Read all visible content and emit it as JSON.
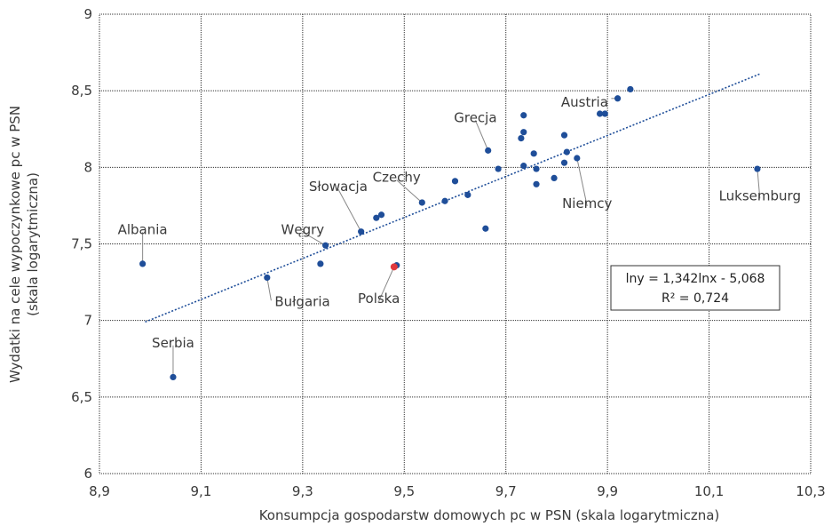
{
  "chart_data": {
    "type": "scatter",
    "title": "",
    "xlabel": "Konsumpcja gospodarstw domowych pc w PSN (skala logarytmiczna)",
    "ylabel_line1": "Wydatki na cele wypoczynkowe pc w PSN",
    "ylabel_line2": "(skala logarytmiczna)",
    "xlim": [
      8.9,
      10.3
    ],
    "ylim": [
      6,
      9
    ],
    "x_ticks": [
      8.9,
      9.1,
      9.3,
      9.5,
      9.7,
      9.9,
      10.1,
      10.3
    ],
    "x_tick_labels": [
      "8,9",
      "9,1",
      "9,3",
      "9,5",
      "9,7",
      "9,9",
      "10,1",
      "10,3"
    ],
    "y_ticks": [
      6,
      6.5,
      7,
      7.5,
      8,
      8.5,
      9
    ],
    "y_tick_labels": [
      "6",
      "6,5",
      "7",
      "7,5",
      "8",
      "8,5",
      "9"
    ],
    "grid": true,
    "colors": {
      "point": "#1f4e99",
      "highlight": "#e0393e",
      "trend": "#1f4e99",
      "grid": "#333333",
      "text": "#3a3a3a"
    },
    "points": [
      {
        "x": 8.985,
        "y": 7.37
      },
      {
        "x": 9.045,
        "y": 6.63
      },
      {
        "x": 9.23,
        "y": 7.28
      },
      {
        "x": 9.335,
        "y": 7.37
      },
      {
        "x": 9.345,
        "y": 7.49
      },
      {
        "x": 9.415,
        "y": 7.58
      },
      {
        "x": 9.445,
        "y": 7.67
      },
      {
        "x": 9.455,
        "y": 7.69
      },
      {
        "x": 9.485,
        "y": 7.36
      },
      {
        "x": 9.535,
        "y": 7.77
      },
      {
        "x": 9.58,
        "y": 7.78
      },
      {
        "x": 9.6,
        "y": 7.91
      },
      {
        "x": 9.625,
        "y": 7.82
      },
      {
        "x": 9.66,
        "y": 7.6
      },
      {
        "x": 9.665,
        "y": 8.11
      },
      {
        "x": 9.685,
        "y": 7.99
      },
      {
        "x": 9.73,
        "y": 8.19
      },
      {
        "x": 9.735,
        "y": 8.23
      },
      {
        "x": 9.735,
        "y": 8.34
      },
      {
        "x": 9.735,
        "y": 8.01
      },
      {
        "x": 9.755,
        "y": 8.09
      },
      {
        "x": 9.76,
        "y": 7.99
      },
      {
        "x": 9.76,
        "y": 7.89
      },
      {
        "x": 9.795,
        "y": 7.93
      },
      {
        "x": 9.815,
        "y": 8.03
      },
      {
        "x": 9.815,
        "y": 8.21
      },
      {
        "x": 9.82,
        "y": 8.1
      },
      {
        "x": 9.84,
        "y": 8.06
      },
      {
        "x": 9.885,
        "y": 8.35
      },
      {
        "x": 9.895,
        "y": 8.35
      },
      {
        "x": 9.92,
        "y": 8.45
      },
      {
        "x": 9.945,
        "y": 8.51
      },
      {
        "x": 10.195,
        "y": 7.99
      }
    ],
    "highlight_points": [
      {
        "name": "Polska",
        "x": 9.48,
        "y": 7.35
      }
    ],
    "annotations": [
      {
        "text": "Albania",
        "px": 8.985,
        "py": 7.37,
        "lx": 8.985,
        "ly": 7.6,
        "anchor": "middle"
      },
      {
        "text": "Serbia",
        "px": 9.045,
        "py": 6.63,
        "lx": 9.045,
        "ly": 6.86,
        "anchor": "middle"
      },
      {
        "text": "Bułgaria",
        "px": 9.23,
        "py": 7.28,
        "lx": 9.245,
        "ly": 7.13,
        "anchor": "start"
      },
      {
        "text": "Węgry",
        "px": 9.345,
        "py": 7.49,
        "lx": 9.3,
        "ly": 7.6,
        "anchor": "middle"
      },
      {
        "text": "Słowacja",
        "px": 9.415,
        "py": 7.58,
        "lx": 9.37,
        "ly": 7.88,
        "anchor": "middle"
      },
      {
        "text": "Czechy",
        "px": 9.535,
        "py": 7.77,
        "lx": 9.485,
        "ly": 7.94,
        "anchor": "middle"
      },
      {
        "text": "Polska",
        "px": 9.48,
        "py": 7.35,
        "lx": 9.45,
        "ly": 7.15,
        "anchor": "middle"
      },
      {
        "text": "Grecja",
        "px": 9.665,
        "py": 8.11,
        "lx": 9.64,
        "ly": 8.33,
        "anchor": "middle"
      },
      {
        "text": "Austria",
        "px": 9.92,
        "py": 8.45,
        "lx": 9.855,
        "ly": 8.43,
        "anchor": "middle"
      },
      {
        "text": "Niemcy",
        "px": 9.84,
        "py": 8.06,
        "lx": 9.86,
        "ly": 7.77,
        "anchor": "middle"
      },
      {
        "text": "Luksemburg",
        "px": 10.195,
        "py": 7.99,
        "lx": 10.2,
        "ly": 7.82,
        "anchor": "middle"
      }
    ],
    "trendline": {
      "x_start": 8.99,
      "y_start": 6.99,
      "x_end": 10.2,
      "y_end": 8.61,
      "equation": "lny = 1,342lnx - 5,068",
      "r2": "R² = 0,724"
    }
  }
}
